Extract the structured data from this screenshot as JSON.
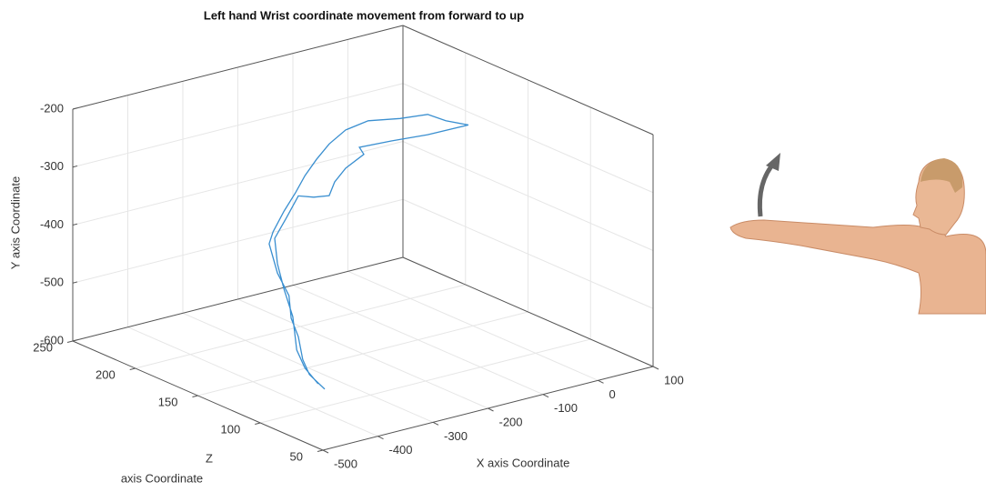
{
  "chart_data": {
    "type": "line3d",
    "title": "Left hand Wrist coordinate movement from forward to up",
    "xlabel": "X axis Coordinate",
    "ylabel": "Y axis Coordinate",
    "zlabel": [
      "Z",
      "axis Coordinate"
    ],
    "xlim": [
      -500,
      100
    ],
    "xticks": [
      -500,
      -400,
      -300,
      -200,
      -100,
      0,
      100
    ],
    "ylim": [
      -600,
      -200
    ],
    "yticks": [
      -600,
      -500,
      -400,
      -300,
      -200
    ],
    "zlim": [
      50,
      250
    ],
    "zticks": [
      50,
      100,
      150,
      200,
      250
    ],
    "grid": true,
    "series": [
      {
        "color": "#3a8fd0",
        "x": [
          -383,
          -411,
          -423,
          -431,
          -444,
          -448,
          -469,
          -484,
          -477,
          -457,
          -436,
          -419,
          -398,
          -375,
          -345,
          -304,
          -246,
          -196,
          -163,
          -122,
          -196,
          -262,
          -320,
          -312,
          -345,
          -365,
          -375,
          -403,
          -431,
          -453,
          -474,
          -469,
          -457,
          -441,
          -434,
          -419,
          -395
        ],
        "y": [
          -570,
          -538,
          -509,
          -468,
          -433,
          -393,
          -349,
          -295,
          -276,
          -245,
          -218,
          -193,
          -170,
          -149,
          -132,
          -126,
          -136,
          -141,
          -160,
          -177,
          -176,
          -171,
          -168,
          -182,
          -198,
          -217,
          -238,
          -234,
          -225,
          -258,
          -288,
          -333,
          -380,
          -431,
          -490,
          -525,
          -558
        ],
        "z": [
          100,
          100,
          100,
          100,
          100,
          100,
          100,
          100,
          100,
          100,
          100,
          100,
          100,
          100,
          100,
          100,
          100,
          100,
          100,
          100,
          100,
          100,
          100,
          100,
          100,
          100,
          100,
          100,
          100,
          100,
          100,
          100,
          100,
          100,
          100,
          100,
          100
        ]
      }
    ]
  }
}
